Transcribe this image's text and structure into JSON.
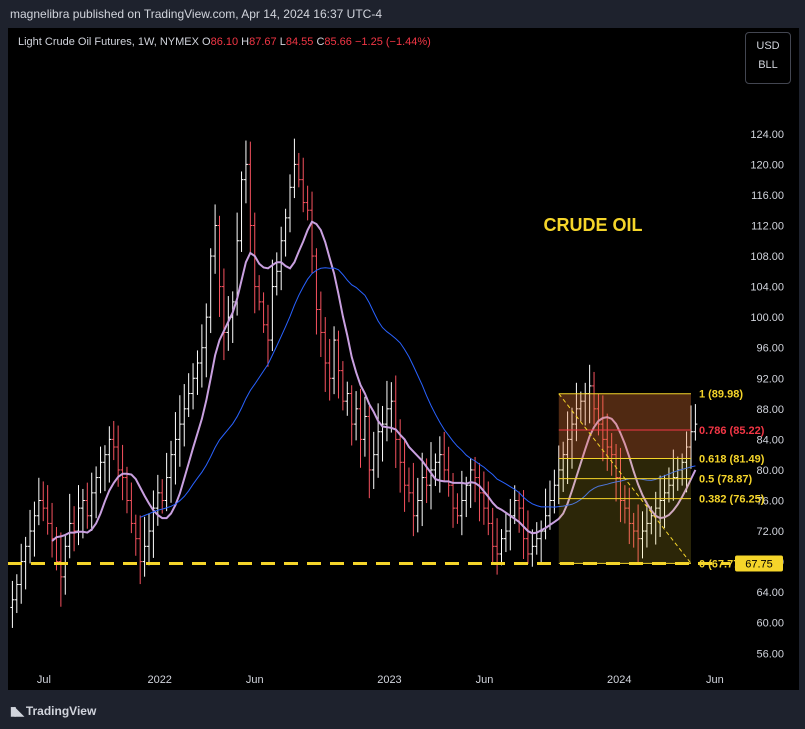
{
  "header": {
    "publisher": "magnelibra published on TradingView.com, Apr 14, 2024 16:37 UTC-4"
  },
  "legend": {
    "symbol": "Light Crude Oil Futures, 1W, NYMEX",
    "open_label": "O",
    "open": "86.10",
    "high_label": "H",
    "high": "87.67",
    "low_label": "L",
    "low": "84.55",
    "close_label": "C",
    "close": "85.66",
    "change": "−1.25 (−1.44%)"
  },
  "units": [
    "USD",
    "BLL"
  ],
  "footer": {
    "brand": "TradingView",
    "logo_icon": "tradingview-logo-icon"
  },
  "colors": {
    "background": "#000000",
    "up": "#ffffff",
    "down": "#f7525f",
    "fib": "#f5d52a",
    "fib_786": "#f23645",
    "ma_fast": "#c9a0e0",
    "ma_slow": "#2962ff",
    "support": "#f5d52a"
  },
  "chart_data": {
    "type": "ohlc",
    "title": "CRUDE OIL",
    "y_axis": {
      "ticks": [
        "124.00",
        "120.00",
        "116.00",
        "112.00",
        "108.00",
        "104.00",
        "100.00",
        "96.00",
        "92.00",
        "88.00",
        "84.00",
        "80.00",
        "76.00",
        "72.00",
        "68.00",
        "64.00",
        "60.00",
        "56.00"
      ],
      "ylim": [
        52.5,
        130
      ]
    },
    "x_axis": {
      "ticks": [
        {
          "label": "Jul",
          "date": "2021-07-01"
        },
        {
          "label": "2022",
          "date": "2022-01-01"
        },
        {
          "label": "Jun",
          "date": "2022-06-01"
        },
        {
          "label": "2023",
          "date": "2023-01-01"
        },
        {
          "label": "Jun",
          "date": "2023-06-01"
        },
        {
          "label": "2024",
          "date": "2024-01-01"
        },
        {
          "label": "Jun",
          "date": "2024-06-01"
        }
      ],
      "xlim": [
        "2021-05-05",
        "2024-06-25"
      ]
    },
    "support_line": {
      "value": 67.75,
      "label": "67.75"
    },
    "fibonacci": {
      "start_date": "2023-09-27",
      "end_date": "2024-04-24",
      "levels": [
        {
          "ratio": "1",
          "value": 89.98,
          "label": "1 (89.98)"
        },
        {
          "ratio": "0.786",
          "value": 85.22,
          "label": "0.786 (85.22)"
        },
        {
          "ratio": "0.618",
          "value": 81.49,
          "label": "0.618 (81.49)"
        },
        {
          "ratio": "0.5",
          "value": 78.87,
          "label": "0.5 (78.87)"
        },
        {
          "ratio": "0.382",
          "value": 76.25,
          "label": "0.382 (76.25)"
        },
        {
          "ratio": "0",
          "value": 67.77,
          "label": "0 (67.77)"
        }
      ]
    },
    "series": [
      {
        "name": "close",
        "values": [
          63,
          65,
          68,
          70,
          72,
          74,
          76,
          75,
          73,
          71,
          68,
          66,
          70,
          73,
          72,
          75,
          76,
          74,
          77,
          79,
          81,
          82,
          84,
          83,
          80,
          79,
          76,
          73,
          71,
          68,
          70,
          72,
          75,
          77,
          76,
          79,
          82,
          84,
          86,
          88,
          90,
          92,
          94,
          96,
          100,
          108,
          112,
          104,
          98,
          100,
          102,
          110,
          118,
          120,
          112,
          104,
          102,
          99,
          97,
          104,
          106,
          110,
          113,
          117,
          120,
          118,
          115,
          114,
          108,
          101,
          98,
          94,
          92,
          97,
          93,
          89,
          90,
          86,
          88,
          84,
          87,
          80,
          82,
          85,
          86,
          88,
          89,
          84,
          81,
          78,
          77,
          74,
          76,
          79,
          78,
          80,
          81,
          82,
          80,
          78,
          75,
          74,
          76,
          78,
          80,
          79,
          77,
          75,
          73,
          70,
          69,
          71,
          72,
          74,
          76,
          75,
          71,
          69,
          70,
          71,
          72,
          74,
          76,
          78,
          80,
          82,
          84,
          86,
          88,
          89,
          90,
          91,
          88,
          86,
          84,
          83,
          82,
          79,
          76,
          75,
          73,
          72,
          71,
          72,
          73,
          74,
          75,
          76,
          77,
          78,
          79,
          80,
          81,
          83,
          85,
          86
        ]
      },
      {
        "name": "ma_fast",
        "values": []
      },
      {
        "name": "ma_slow",
        "values": []
      }
    ]
  }
}
